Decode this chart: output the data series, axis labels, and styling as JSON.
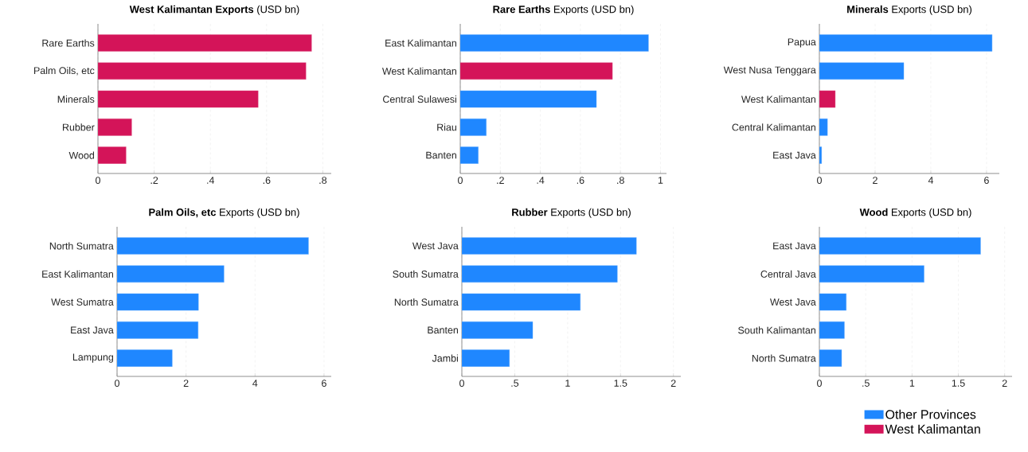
{
  "chart_data": [
    {
      "type": "bar",
      "orientation": "horizontal",
      "title": "**West Kalimantan Exports** (USD bn)",
      "categories": [
        "Rare Earths",
        "Palm Oils, etc",
        "Minerals",
        "Rubber",
        "Wood"
      ],
      "series": [
        {
          "color": "#1f87ff",
          "values": [
            null,
            null,
            null,
            null,
            null
          ]
        },
        {
          "color": "#d41459",
          "values": [
            0.76,
            0.74,
            0.57,
            0.12,
            0.1
          ]
        }
      ],
      "xlim": [
        0,
        0.83
      ],
      "xticks": [
        0,
        {
          "value": 0.2,
          "label": ".2"
        },
        {
          "value": 0.4,
          "label": ".4"
        },
        {
          "value": 0.6,
          "label": ".6"
        },
        {
          "value": 0.8,
          "label": ".8"
        }
      ],
      "grid": "x"
    },
    {
      "type": "bar",
      "orientation": "horizontal",
      "title": "**Rare Earths** Exports (USD bn)",
      "categories": [
        "East Kalimantan",
        "West Kalimantan",
        "Central Sulawesi",
        "Riau",
        "Banten"
      ],
      "series": [
        {
          "color": "#1f87ff",
          "values": [
            0.94,
            null,
            0.68,
            0.13,
            0.09
          ]
        },
        {
          "color": "#d41459",
          "values": [
            null,
            0.76,
            null,
            null,
            null
          ]
        }
      ],
      "xlim": [
        0,
        1.03
      ],
      "xticks": [
        0,
        {
          "value": 0.2,
          "label": ".2"
        },
        {
          "value": 0.4,
          "label": ".4"
        },
        {
          "value": 0.6,
          "label": ".6"
        },
        {
          "value": 0.8,
          "label": ".8"
        },
        1
      ],
      "grid": "x"
    },
    {
      "type": "bar",
      "orientation": "horizontal",
      "title": "**Minerals** Exports (USD bn)",
      "categories": [
        "Papua",
        "West Nusa Tenggara",
        "West Kalimantan",
        "Central Kalimantan",
        "East Java"
      ],
      "series": [
        {
          "color": "#1f87ff",
          "values": [
            6.2,
            3.03,
            null,
            0.29,
            0.08
          ]
        },
        {
          "color": "#d41459",
          "values": [
            null,
            null,
            0.57,
            null,
            null
          ]
        }
      ],
      "xlim": [
        0,
        6.46
      ],
      "xticks": [
        0,
        2,
        4,
        6
      ],
      "grid": "x"
    },
    {
      "type": "bar",
      "orientation": "horizontal",
      "title": "**Palm Oils, etc** Exports (USD bn)",
      "categories": [
        "North Sumatra",
        "East Kalimantan",
        "West Sumatra",
        "East Java",
        "Lampung"
      ],
      "series": [
        {
          "color": "#1f87ff",
          "values": [
            5.55,
            3.1,
            2.36,
            2.35,
            1.6
          ]
        },
        {
          "color": "#d41459",
          "values": [
            null,
            null,
            null,
            null,
            null
          ]
        }
      ],
      "xlim": [
        0,
        6.21
      ],
      "xticks": [
        0,
        2,
        4,
        6
      ],
      "grid": "x"
    },
    {
      "type": "bar",
      "orientation": "horizontal",
      "title": "**Rubber** Exports (USD bn)",
      "categories": [
        "West Java",
        "South Sumatra",
        "North Sumatra",
        "Banten",
        "Jambi"
      ],
      "series": [
        {
          "color": "#1f87ff",
          "values": [
            1.65,
            1.47,
            1.12,
            0.67,
            0.45
          ]
        },
        {
          "color": "#d41459",
          "values": [
            null,
            null,
            null,
            null,
            null
          ]
        }
      ],
      "xlim": [
        0,
        2.07
      ],
      "xticks": [
        0,
        {
          "value": 0.5,
          "label": ".5"
        },
        1,
        1.5,
        2
      ],
      "grid": "x"
    },
    {
      "type": "bar",
      "orientation": "horizontal",
      "title": "**Wood** Exports (USD bn)",
      "categories": [
        "East Java",
        "Central Java",
        "West Java",
        "South Kalimantan",
        "North Sumatra"
      ],
      "series": [
        {
          "name": "Other Provinces",
          "color": "#1f87ff",
          "values": [
            1.74,
            1.13,
            0.29,
            0.27,
            0.24
          ]
        },
        {
          "name": "West Kalimantan",
          "color": "#d41459",
          "values": [
            null,
            null,
            null,
            null,
            null
          ]
        }
      ],
      "xlim": [
        0,
        2.08
      ],
      "xticks": [
        0,
        {
          "value": 0.5,
          "label": ".5"
        },
        1,
        1.5,
        2
      ],
      "grid": "x",
      "legend": "bottom"
    }
  ]
}
